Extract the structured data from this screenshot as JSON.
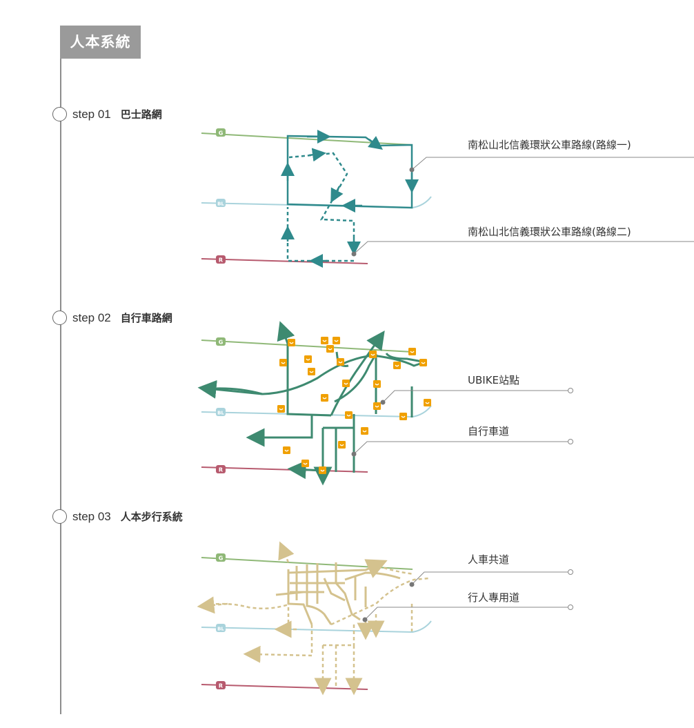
{
  "header": {
    "title": "人本系統"
  },
  "steps": [
    {
      "num": "step 01",
      "name": "巴士路網"
    },
    {
      "num": "step  02",
      "name": "自行車路網"
    },
    {
      "num": "step  03",
      "name": "人本步行系統"
    }
  ],
  "callouts": {
    "bus_route_1": "南松山北信義環狀公車路線(路線一)",
    "bus_route_2": "南松山北信義環狀公車路線(路線二)",
    "ubike": "UBIKE站點",
    "bike_lane": "自行車道",
    "shared_road": "人車共道",
    "pedestrian": "行人專用道"
  },
  "metro_lines": [
    {
      "badge": "G",
      "color": "#8fb877"
    },
    {
      "badge": "BL",
      "color": "#a9d3dc"
    },
    {
      "badge": "R",
      "color": "#b75a6e"
    }
  ],
  "colors": {
    "bus": "#2f8a8c",
    "bike": "#3e8a70",
    "ubike": "#f0a000",
    "walk": "#d4c28e",
    "timeline": "#8c8c8c",
    "callout_line": "#888888"
  }
}
